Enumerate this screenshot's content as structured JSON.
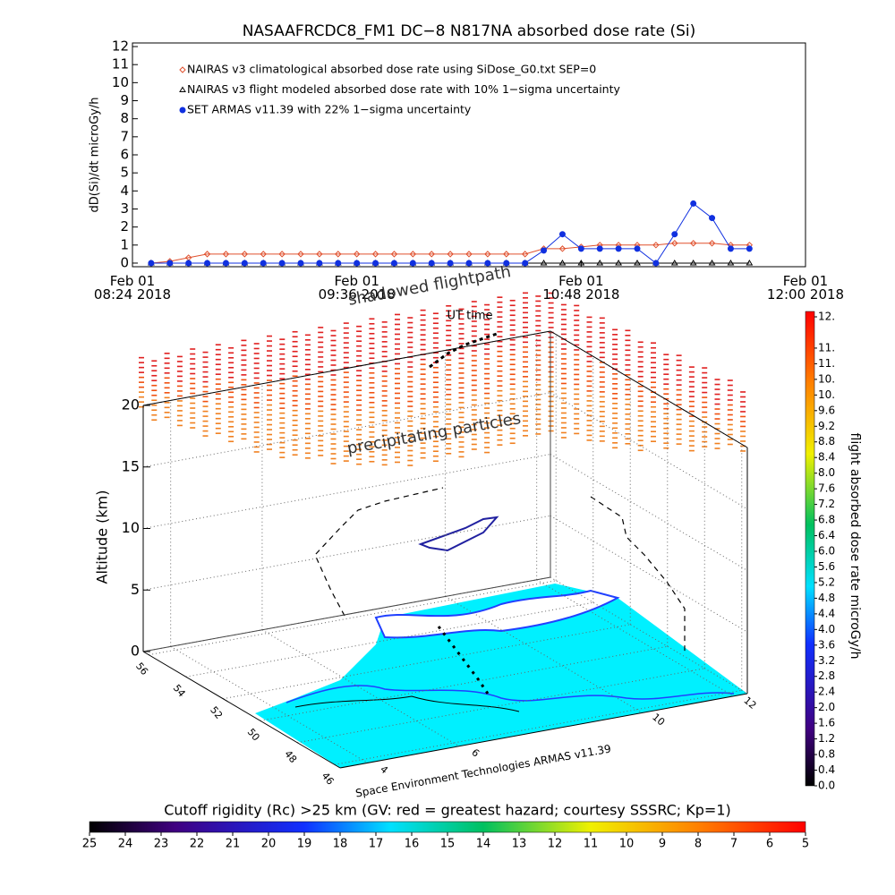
{
  "chart_data": [
    {
      "type": "line",
      "title": "NASAAFRCDC8_FM1 DC−8    N817NA absorbed dose rate (Si)",
      "y_label": "dD(Si)/dt microGy/h",
      "x_label": "UT time",
      "x": [
        "2018-02-01T08:30",
        "2018-02-01T08:36",
        "2018-02-01T08:42",
        "2018-02-01T08:48",
        "2018-02-01T08:54",
        "2018-02-01T09:00",
        "2018-02-01T09:06",
        "2018-02-01T09:12",
        "2018-02-01T09:18",
        "2018-02-01T09:24",
        "2018-02-01T09:30",
        "2018-02-01T09:36",
        "2018-02-01T09:42",
        "2018-02-01T09:48",
        "2018-02-01T09:54",
        "2018-02-01T10:00",
        "2018-02-01T10:06",
        "2018-02-01T10:12",
        "2018-02-01T10:18",
        "2018-02-01T10:24",
        "2018-02-01T10:30",
        "2018-02-01T10:36",
        "2018-02-01T10:42",
        "2018-02-01T10:48",
        "2018-02-01T10:54",
        "2018-02-01T11:00",
        "2018-02-01T11:06",
        "2018-02-01T11:12",
        "2018-02-01T11:18",
        "2018-02-01T11:24",
        "2018-02-01T11:30",
        "2018-02-01T11:36",
        "2018-02-01T11:42"
      ],
      "series": [
        {
          "name": "NAIRAS v3 climatological absorbed dose rate using SiDose_G0.txt SEP=0",
          "color": "#e0502d",
          "marker": "diamond",
          "values": [
            0,
            0.1,
            0.3,
            0.5,
            0.5,
            0.5,
            0.5,
            0.5,
            0.5,
            0.5,
            0.5,
            0.5,
            0.5,
            0.5,
            0.5,
            0.5,
            0.5,
            0.5,
            0.5,
            0.5,
            0.5,
            0.8,
            0.8,
            0.9,
            1.0,
            1.0,
            1.0,
            1.0,
            1.1,
            1.1,
            1.1,
            1.0,
            1.0
          ]
        },
        {
          "name": "NAIRAS v3 flight modeled absorbed dose rate with 10% 1−sigma uncertainty",
          "color": "#000000",
          "marker": "triangle",
          "values": [
            0,
            0,
            0,
            0,
            0,
            0,
            0,
            0,
            0,
            0,
            0,
            0,
            0,
            0,
            0,
            0,
            0,
            0,
            0,
            0,
            0,
            0,
            0,
            0,
            0,
            0,
            0,
            0,
            0,
            0,
            0,
            0,
            0
          ]
        },
        {
          "name": "SET ARMAS v11.39 with 22% 1−sigma uncertainty",
          "color": "#1030e0",
          "marker": "circle",
          "values": [
            0,
            0,
            0,
            0,
            0,
            0,
            0,
            0,
            0,
            0,
            0,
            0,
            0,
            0,
            0,
            0,
            0,
            0,
            0,
            0,
            0,
            0.7,
            1.6,
            0.8,
            0.8,
            0.8,
            0.8,
            0,
            1.6,
            3.3,
            2.5,
            0.8,
            0.8
          ]
        }
      ],
      "xlim": [
        "2018-02-01T08:24",
        "2018-02-01T12:00"
      ],
      "xticks": [
        {
          "value": "2018-02-01T08:24",
          "label": "Feb 01\n08:24 2018"
        },
        {
          "value": "2018-02-01T09:36",
          "label": "Feb 01\n09:36 2018"
        },
        {
          "value": "2018-02-01T10:48",
          "label": "Feb 01\n10:48 2018"
        },
        {
          "value": "2018-02-01T12:00",
          "label": "Feb 01\n12:00 2018"
        }
      ],
      "ylim": [
        -0.2,
        12.2
      ],
      "yticks": [
        0,
        1,
        2,
        3,
        4,
        5,
        6,
        7,
        8,
        9,
        10,
        11,
        12
      ]
    },
    {
      "type": "3d",
      "z_label": "Altitude (km)",
      "annotations": [
        "shadowed flightpath",
        "precipitating particles"
      ],
      "credit": "Space Environment Technologies ARMAS v11.39",
      "zlim": [
        0,
        20
      ],
      "zticks": [
        0,
        5,
        10,
        15,
        20
      ],
      "ylim": [
        45.7,
        56.3
      ],
      "yticks": [
        46,
        48,
        50,
        52,
        54,
        56
      ],
      "xlim": [
        3.4,
        12.3
      ],
      "xticks": [
        4,
        6,
        10,
        12
      ]
    },
    {
      "type": "colorbar",
      "orientation": "vertical",
      "label": "flight absorbed dose rate microGy/h",
      "lim": [
        0,
        12
      ],
      "ticks": [
        {
          "value": 0,
          "label": "0.0"
        },
        0.4,
        0.8,
        1.2,
        1.6,
        {
          "value": 2,
          "label": "2.0"
        },
        2.4,
        2.8,
        3.2,
        3.6,
        {
          "value": 4,
          "label": "4.0"
        },
        4.4,
        4.8,
        5.2,
        5.6,
        {
          "value": 6,
          "label": "6.0"
        },
        6.4,
        6.8,
        7.2,
        7.6,
        {
          "value": 8,
          "label": "8.0"
        },
        8.4,
        8.8,
        9.2,
        9.6,
        {
          "value": 10,
          "label": "10."
        },
        {
          "value": 10.4,
          "label": "10."
        },
        {
          "value": 10.8,
          "label": "11."
        },
        {
          "value": 11.2,
          "label": "11."
        },
        {
          "value": 12,
          "label": "12."
        }
      ]
    },
    {
      "type": "colorbar",
      "orientation": "horizontal",
      "label": "Cutoff rigidity (Rc) >25 km (GV: red = greatest hazard; courtesy SSSRC; Kp=1)",
      "lim": [
        25,
        5
      ],
      "ticks": [
        25,
        24,
        23,
        22,
        21,
        20,
        19,
        18,
        17,
        16,
        15,
        14,
        13,
        12,
        11,
        10,
        9,
        8,
        7,
        6,
        5
      ]
    }
  ]
}
